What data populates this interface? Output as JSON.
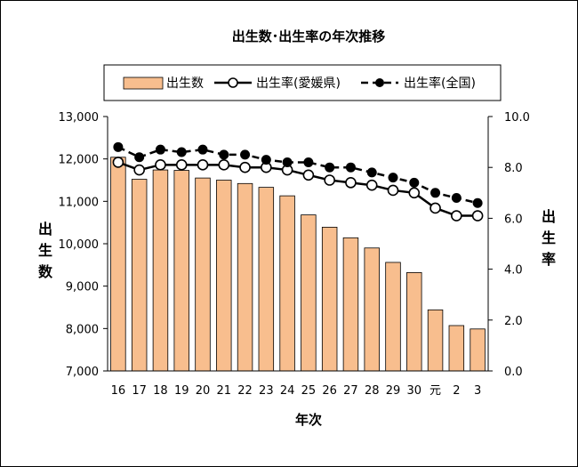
{
  "chart_data": {
    "type": "bar",
    "title": "出生数･出生率の年次推移",
    "xlabel": "年次",
    "ylabel_left": "出生数",
    "ylabel_right": "出生率",
    "categories": [
      "16",
      "17",
      "18",
      "19",
      "20",
      "21",
      "22",
      "23",
      "24",
      "25",
      "26",
      "27",
      "28",
      "29",
      "30",
      "元",
      "2",
      "3"
    ],
    "y_left": {
      "min": 7000,
      "max": 13000,
      "ticks": [
        "13,000",
        "12,000",
        "11,000",
        "10,000",
        "9,000",
        "8,000",
        "7,000"
      ]
    },
    "y_right": {
      "min": 0,
      "max": 10,
      "ticks": [
        "10.0",
        "8.0",
        "6.0",
        "4.0",
        "2.0",
        "0.0"
      ]
    },
    "legend_position": "top",
    "series": [
      {
        "name": "出生数",
        "kind": "bar",
        "axis": "left",
        "color": "#F8BE8E",
        "values": [
          12040,
          11520,
          11740,
          11730,
          11550,
          11500,
          11420,
          11330,
          11130,
          10680,
          10390,
          10140,
          9900,
          9560,
          9320,
          8440,
          8070,
          7990
        ]
      },
      {
        "name": "出生率(愛媛県)",
        "kind": "line",
        "axis": "right",
        "marker": "open-circle",
        "values": [
          8.2,
          7.9,
          8.1,
          8.1,
          8.1,
          8.1,
          8.0,
          8.0,
          7.9,
          7.7,
          7.5,
          7.4,
          7.3,
          7.1,
          7.0,
          6.4,
          6.1,
          6.1
        ]
      },
      {
        "name": "出生率(全国)",
        "kind": "line",
        "axis": "right",
        "marker": "filled-circle",
        "dashed": true,
        "values": [
          8.8,
          8.4,
          8.7,
          8.6,
          8.7,
          8.5,
          8.5,
          8.3,
          8.2,
          8.2,
          8.0,
          8.0,
          7.8,
          7.6,
          7.4,
          7.0,
          6.8,
          6.6
        ]
      }
    ]
  }
}
